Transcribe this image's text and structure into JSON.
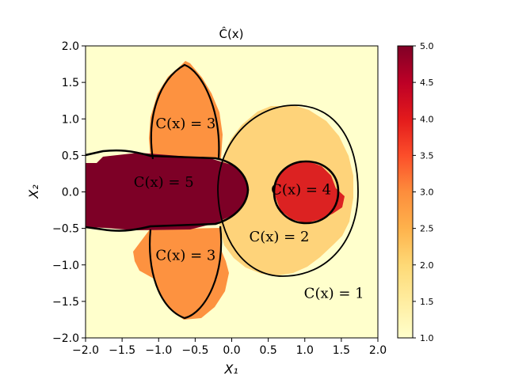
{
  "chart_data": {
    "type": "heatmap",
    "title": "Ĉ(x)",
    "xlabel": "X₁",
    "ylabel": "X₂",
    "xlim": [
      -2.0,
      2.0
    ],
    "ylim": [
      -2.0,
      2.0
    ],
    "x_ticks": [
      "−2.0",
      "−1.5",
      "−1.0",
      "−0.5",
      "0.0",
      "0.5",
      "1.0",
      "1.5",
      "2.0"
    ],
    "y_ticks": [
      "2.0",
      "1.5",
      "1.0",
      "0.5",
      "0.0",
      "−0.5",
      "−1.0",
      "−1.5",
      "−2.0"
    ],
    "colorbar": {
      "range": [
        1.0,
        5.0
      ],
      "ticks": [
        "5.0",
        "4.5",
        "4.0",
        "3.5",
        "3.0",
        "2.5",
        "2.0",
        "1.5",
        "1.0"
      ],
      "colormap": "YlOrRd",
      "colors": [
        "#ffffcc",
        "#fed976",
        "#fd8d3c",
        "#e31a1c",
        "#800026"
      ]
    },
    "regions": [
      {
        "value": 1,
        "label_text": "C(x) = 1",
        "color": "#ffffcc"
      },
      {
        "value": 2,
        "label_text": "C(x) = 2",
        "color": "#fed37a"
      },
      {
        "value": 3,
        "label_text": "C(x) = 3",
        "color": "#fd9240"
      },
      {
        "value": 3,
        "label_text": "C(x) = 3",
        "color": "#fd9240"
      },
      {
        "value": 4,
        "label_text": "C(x) = 4",
        "color": "#dc2222"
      },
      {
        "value": 5,
        "label_text": "C(x) = 5",
        "color": "#7d0026"
      }
    ],
    "grid": false
  }
}
